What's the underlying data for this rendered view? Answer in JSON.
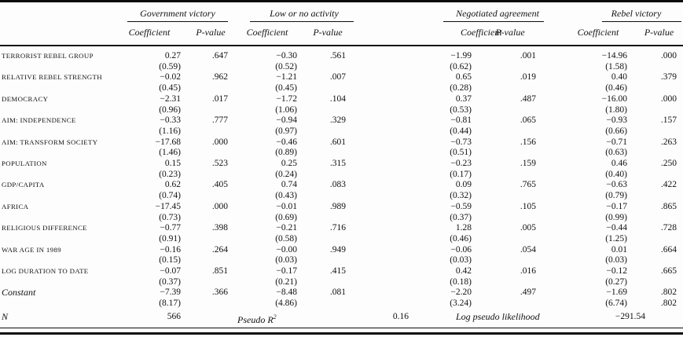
{
  "table": {
    "groups": [
      {
        "label": "Government victory"
      },
      {
        "label": "Low or no activity"
      },
      {
        "label": "Negotiated agreement"
      },
      {
        "label": "Rebel victory"
      }
    ],
    "subheaders": {
      "coefficient": "Coefficient",
      "pvalue": "P-value"
    },
    "rows": [
      {
        "label": "TERRORIST REBEL GROUP",
        "italic": false,
        "cells": [
          {
            "coef": "0.27",
            "se": "(0.59)",
            "p": ".647"
          },
          {
            "coef": "−0.30",
            "se": "(0.52)",
            "p": ".561"
          },
          {
            "coef": "−1.99",
            "se": "(0.62)",
            "p": ".001"
          },
          {
            "coef": "−14.96",
            "se": "(1.58)",
            "p": ".000"
          }
        ]
      },
      {
        "label": "RELATIVE REBEL STRENGTH",
        "italic": false,
        "cells": [
          {
            "coef": "−0.02",
            "se": "(0.45)",
            "p": ".962"
          },
          {
            "coef": "−1.21",
            "se": "(0.45)",
            "p": ".007"
          },
          {
            "coef": "0.65",
            "se": "(0.28)",
            "p": ".019"
          },
          {
            "coef": "0.40",
            "se": "(0.46)",
            "p": ".379"
          }
        ]
      },
      {
        "label": "DEMOCRACY",
        "italic": false,
        "cells": [
          {
            "coef": "−2.31",
            "se": "(0.96)",
            "p": ".017"
          },
          {
            "coef": "−1.72",
            "se": "(1.06)",
            "p": ".104"
          },
          {
            "coef": "0.37",
            "se": "(0.53)",
            "p": ".487"
          },
          {
            "coef": "−16.00",
            "se": "(1.80)",
            "p": ".000"
          }
        ]
      },
      {
        "label": "AIM: INDEPENDENCE",
        "italic": false,
        "cells": [
          {
            "coef": "−0.33",
            "se": "(1.16)",
            "p": ".777"
          },
          {
            "coef": "−0.94",
            "se": "(0.97)",
            "p": ".329"
          },
          {
            "coef": "−0.81",
            "se": "(0.44)",
            "p": ".065"
          },
          {
            "coef": "−0.93",
            "se": "(0.66)",
            "p": ".157"
          }
        ]
      },
      {
        "label": "AIM: TRANSFORM SOCIETY",
        "italic": false,
        "cells": [
          {
            "coef": "−17.68",
            "se": "(1.46)",
            "p": ".000"
          },
          {
            "coef": "−0.46",
            "se": "(0.89)",
            "p": ".601"
          },
          {
            "coef": "−0.73",
            "se": "(0.51)",
            "p": ".156"
          },
          {
            "coef": "−0.71",
            "se": "(0.63)",
            "p": ".263"
          }
        ]
      },
      {
        "label": "POPULATION",
        "italic": false,
        "cells": [
          {
            "coef": "0.15",
            "se": "(0.23)",
            "p": ".523"
          },
          {
            "coef": "0.25",
            "se": "(0.24)",
            "p": ".315"
          },
          {
            "coef": "−0.23",
            "se": "(0.17)",
            "p": ".159"
          },
          {
            "coef": "0.46",
            "se": "(0.40)",
            "p": ".250"
          }
        ]
      },
      {
        "label": "GDP/CAPITA",
        "italic": false,
        "cells": [
          {
            "coef": "0.62",
            "se": "(0.74)",
            "p": ".405"
          },
          {
            "coef": "0.74",
            "se": "(0.43)",
            "p": ".083"
          },
          {
            "coef": "0.09",
            "se": "(0.32)",
            "p": ".765"
          },
          {
            "coef": "−0.63",
            "se": "(0.79)",
            "p": ".422"
          }
        ]
      },
      {
        "label": "AFRICA",
        "italic": false,
        "cells": [
          {
            "coef": "−17.45",
            "se": "(0.73)",
            "p": ".000"
          },
          {
            "coef": "−0.01",
            "se": "(0.69)",
            "p": ".989"
          },
          {
            "coef": "−0.59",
            "se": "(0.37)",
            "p": ".105"
          },
          {
            "coef": "−0.17",
            "se": "(0.99)",
            "p": ".865"
          }
        ]
      },
      {
        "label": "RELIGIOUS DIFFERENCE",
        "italic": false,
        "cells": [
          {
            "coef": "−0.77",
            "se": "(0.91)",
            "p": ".398"
          },
          {
            "coef": "−0.21",
            "se": "(0.58)",
            "p": ".716"
          },
          {
            "coef": "1.28",
            "se": "(0.46)",
            "p": ".005"
          },
          {
            "coef": "−0.44",
            "se": "(1.25)",
            "p": ".728"
          }
        ]
      },
      {
        "label": "WAR AGE IN 1989",
        "italic": false,
        "cells": [
          {
            "coef": "−0.16",
            "se": "(0.15)",
            "p": ".264"
          },
          {
            "coef": "−0.00",
            "se": "(0.03)",
            "p": ".949"
          },
          {
            "coef": "−0.06",
            "se": "(0.03)",
            "p": ".054"
          },
          {
            "coef": "0.01",
            "se": "(0.03)",
            "p": ".664"
          }
        ]
      },
      {
        "label": "LOG DURATION TO DATE",
        "italic": false,
        "cells": [
          {
            "coef": "−0.07",
            "se": "(0.37)",
            "p": ".851"
          },
          {
            "coef": "−0.17",
            "se": "(0.21)",
            "p": ".415"
          },
          {
            "coef": "0.42",
            "se": "(0.18)",
            "p": ".016"
          },
          {
            "coef": "−0.12",
            "se": "(0.27)",
            "p": ".665"
          }
        ]
      },
      {
        "label": "Constant",
        "italic": true,
        "cells": [
          {
            "coef": "−7.39",
            "se": "(8.17)",
            "p": ".366"
          },
          {
            "coef": "−8.48",
            "se": "(4.86)",
            "p": ".081"
          },
          {
            "coef": "−2.20",
            "se": "(3.24)",
            "p": ".497"
          },
          {
            "coef": "−1.69",
            "se": "(6.74)",
            "p": ".802",
            "p2": ".802"
          }
        ]
      }
    ],
    "summary": {
      "n_label": "N",
      "n_value": "566",
      "pseudo_r2_label": "Pseudo R",
      "pseudo_r2_sup": "2",
      "pseudo_r2_value": "0.16",
      "loglik_label": "Log pseudo likelihood",
      "loglik_value": "−291.54"
    }
  }
}
